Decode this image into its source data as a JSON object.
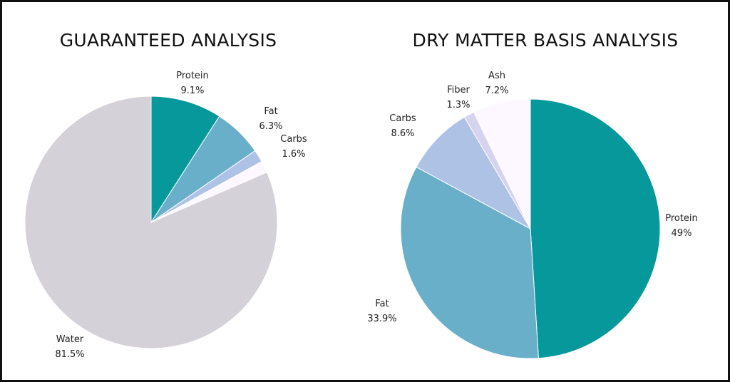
{
  "chart_data": [
    {
      "type": "pie",
      "title": "GUARANTEED ANALYSIS",
      "slices": [
        {
          "label": "Protein",
          "value": 9.1,
          "display": "9.1%",
          "color": "#06989a"
        },
        {
          "label": "Fat",
          "value": 6.3,
          "display": "6.3%",
          "color": "#6aafca"
        },
        {
          "label": "Carbs",
          "value": 1.6,
          "display": "1.6%",
          "color": "#aec2e6"
        },
        {
          "label": "",
          "value": 1.5,
          "display": "",
          "color": "#fdf7ff"
        },
        {
          "label": "Water",
          "value": 81.5,
          "display": "81.5%",
          "color": "#d4d1d8"
        }
      ]
    },
    {
      "type": "pie",
      "title": "DRY MATTER BASIS ANALYSIS",
      "slices": [
        {
          "label": "Protein",
          "value": 49,
          "display": "49%",
          "color": "#06989a"
        },
        {
          "label": "Fat",
          "value": 33.9,
          "display": "33.9%",
          "color": "#6aafca"
        },
        {
          "label": "Carbs",
          "value": 8.6,
          "display": "8.6%",
          "color": "#aec2e6"
        },
        {
          "label": "Fiber",
          "value": 1.3,
          "display": "1.3%",
          "color": "#d6d3ee"
        },
        {
          "label": "Ash",
          "value": 7.2,
          "display": "7.2%",
          "color": "#fdf7ff"
        }
      ]
    }
  ]
}
